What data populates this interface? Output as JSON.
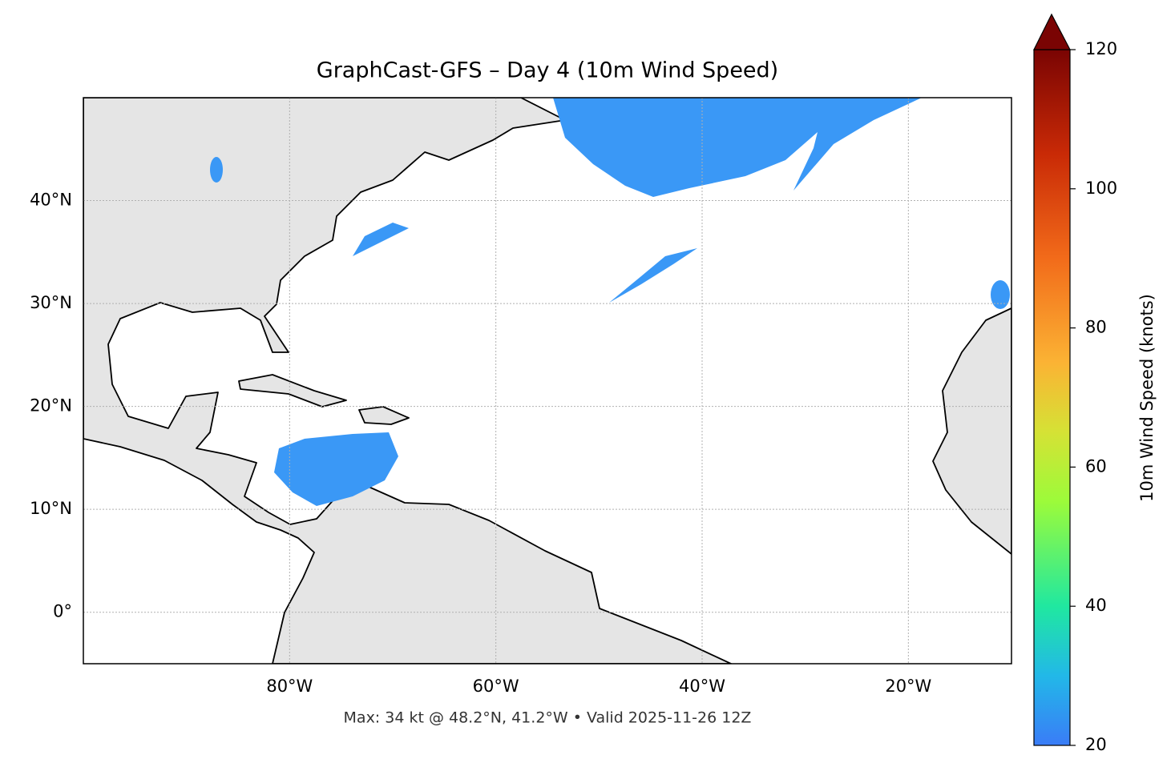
{
  "map": {
    "title": "GraphCast-GFS – Day 4 (10m Wind Speed)",
    "footer": "Max: 34 kt @ 48.2°N, 41.2°W • Valid 2025-11-26 12Z",
    "xlim": [
      -100,
      -10
    ],
    "ylim": [
      -5,
      50
    ],
    "xticks": [
      {
        "value": -80,
        "label": "80°W"
      },
      {
        "value": -60,
        "label": "60°W"
      },
      {
        "value": -40,
        "label": "40°W"
      },
      {
        "value": -20,
        "label": "20°W"
      }
    ],
    "yticks": [
      {
        "value": 0,
        "label": "0°"
      },
      {
        "value": 10,
        "label": "10°N"
      },
      {
        "value": 20,
        "label": "20°N"
      },
      {
        "value": 30,
        "label": "30°N"
      },
      {
        "value": 40,
        "label": "40°N"
      }
    ],
    "grid": true,
    "colorbar": {
      "label": "10m Wind Speed (knots)",
      "lim": [
        20,
        120
      ],
      "ticks": [
        20,
        40,
        60,
        80,
        100,
        120
      ]
    }
  }
}
